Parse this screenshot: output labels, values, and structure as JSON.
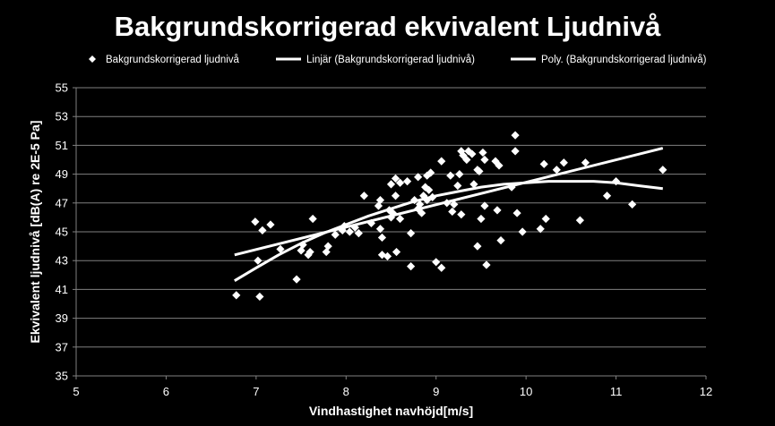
{
  "chart_data": {
    "type": "scatter",
    "title": "Bakgrundskorrigerad ekvivalent Ljudnivå",
    "xlabel": "Vindhastighet navhöjd[m/s]",
    "ylabel": "Ekvivalent ljudnivå  [dB(A) re 2E-5 Pa]",
    "xlim": [
      5,
      12
    ],
    "ylim": [
      35,
      55
    ],
    "xticks": [
      5,
      6,
      7,
      8,
      9,
      10,
      11,
      12
    ],
    "yticks": [
      35,
      37,
      39,
      41,
      43,
      45,
      47,
      49,
      51,
      53,
      55
    ],
    "grid": true,
    "legend_position": "top",
    "colors": {
      "background": "#000000",
      "foreground": "#ffffff",
      "grid": "#808080"
    },
    "legend": [
      {
        "label": "Bakgrundskorrigerad ljudnivå",
        "kind": "marker"
      },
      {
        "label": "Linjär (Bakgrundskorrigerad ljudnivå)",
        "kind": "line"
      },
      {
        "label": "Poly. (Bakgrundskorrigerad ljudnivå)",
        "kind": "line"
      }
    ],
    "series": [
      {
        "name": "Bakgrundskorrigerad ljudnivå",
        "type": "scatter",
        "points": [
          [
            6.78,
            40.6
          ],
          [
            6.99,
            45.7
          ],
          [
            7.02,
            43.0
          ],
          [
            7.04,
            40.5
          ],
          [
            7.07,
            45.1
          ],
          [
            7.16,
            45.5
          ],
          [
            7.27,
            43.8
          ],
          [
            7.45,
            41.7
          ],
          [
            7.5,
            43.7
          ],
          [
            7.52,
            44.1
          ],
          [
            7.58,
            43.4
          ],
          [
            7.6,
            43.6
          ],
          [
            7.63,
            45.9
          ],
          [
            7.78,
            43.6
          ],
          [
            7.8,
            44.0
          ],
          [
            7.88,
            44.8
          ],
          [
            7.96,
            45.1
          ],
          [
            7.98,
            45.4
          ],
          [
            8.04,
            45.0
          ],
          [
            8.1,
            45.3
          ],
          [
            8.14,
            44.9
          ],
          [
            8.2,
            47.5
          ],
          [
            8.28,
            45.6
          ],
          [
            8.36,
            46.8
          ],
          [
            8.38,
            47.2
          ],
          [
            8.38,
            45.2
          ],
          [
            8.4,
            44.6
          ],
          [
            8.4,
            43.4
          ],
          [
            8.46,
            43.3
          ],
          [
            8.48,
            46.5
          ],
          [
            8.5,
            48.3
          ],
          [
            8.5,
            46.0
          ],
          [
            8.52,
            46.3
          ],
          [
            8.55,
            48.7
          ],
          [
            8.55,
            47.5
          ],
          [
            8.56,
            43.6
          ],
          [
            8.6,
            48.4
          ],
          [
            8.6,
            45.9
          ],
          [
            8.68,
            48.5
          ],
          [
            8.72,
            44.9
          ],
          [
            8.72,
            42.6
          ],
          [
            8.76,
            47.2
          ],
          [
            8.8,
            48.8
          ],
          [
            8.8,
            46.6
          ],
          [
            8.82,
            46.9
          ],
          [
            8.84,
            46.3
          ],
          [
            8.86,
            47.5
          ],
          [
            8.88,
            48.1
          ],
          [
            8.9,
            48.9
          ],
          [
            8.9,
            47.2
          ],
          [
            8.92,
            47.9
          ],
          [
            8.94,
            49.1
          ],
          [
            8.96,
            47.4
          ],
          [
            9.0,
            42.9
          ],
          [
            9.06,
            49.9
          ],
          [
            9.06,
            42.5
          ],
          [
            9.12,
            47.0
          ],
          [
            9.16,
            48.9
          ],
          [
            9.18,
            46.4
          ],
          [
            9.2,
            46.9
          ],
          [
            9.24,
            48.2
          ],
          [
            9.26,
            49.0
          ],
          [
            9.28,
            50.6
          ],
          [
            9.28,
            46.2
          ],
          [
            9.3,
            50.3
          ],
          [
            9.34,
            50.0
          ],
          [
            9.36,
            50.6
          ],
          [
            9.4,
            50.4
          ],
          [
            9.42,
            48.3
          ],
          [
            9.46,
            49.3
          ],
          [
            9.46,
            44.0
          ],
          [
            9.48,
            49.2
          ],
          [
            9.5,
            45.9
          ],
          [
            9.52,
            50.5
          ],
          [
            9.54,
            50.0
          ],
          [
            9.54,
            46.8
          ],
          [
            9.56,
            42.7
          ],
          [
            9.66,
            49.9
          ],
          [
            9.68,
            46.5
          ],
          [
            9.7,
            49.6
          ],
          [
            9.72,
            44.4
          ],
          [
            9.84,
            48.1
          ],
          [
            9.88,
            50.6
          ],
          [
            9.88,
            51.7
          ],
          [
            9.9,
            46.3
          ],
          [
            9.96,
            45.0
          ],
          [
            10.16,
            45.2
          ],
          [
            10.2,
            49.7
          ],
          [
            10.22,
            45.9
          ],
          [
            10.34,
            49.3
          ],
          [
            10.42,
            49.8
          ],
          [
            10.6,
            45.8
          ],
          [
            10.66,
            49.8
          ],
          [
            10.9,
            47.5
          ],
          [
            11.0,
            48.5
          ],
          [
            11.18,
            46.9
          ],
          [
            11.52,
            49.3
          ]
        ]
      },
      {
        "name": "Linjär (Bakgrundskorrigerad ljudnivå)",
        "type": "line",
        "points": [
          [
            6.76,
            43.4
          ],
          [
            11.52,
            50.8
          ]
        ]
      },
      {
        "name": "Poly. (Bakgrundskorrigerad ljudnivå)",
        "type": "line",
        "points": [
          [
            6.76,
            41.6
          ],
          [
            7.0,
            42.5
          ],
          [
            7.25,
            43.4
          ],
          [
            7.5,
            44.2
          ],
          [
            7.75,
            44.9
          ],
          [
            8.0,
            45.5
          ],
          [
            8.25,
            46.1
          ],
          [
            8.5,
            46.6
          ],
          [
            8.75,
            47.1
          ],
          [
            9.0,
            47.5
          ],
          [
            9.25,
            47.8
          ],
          [
            9.5,
            48.1
          ],
          [
            9.75,
            48.3
          ],
          [
            10.0,
            48.4
          ],
          [
            10.25,
            48.5
          ],
          [
            10.5,
            48.5
          ],
          [
            10.75,
            48.5
          ],
          [
            11.0,
            48.4
          ],
          [
            11.25,
            48.2
          ],
          [
            11.52,
            48.0
          ]
        ]
      }
    ]
  }
}
